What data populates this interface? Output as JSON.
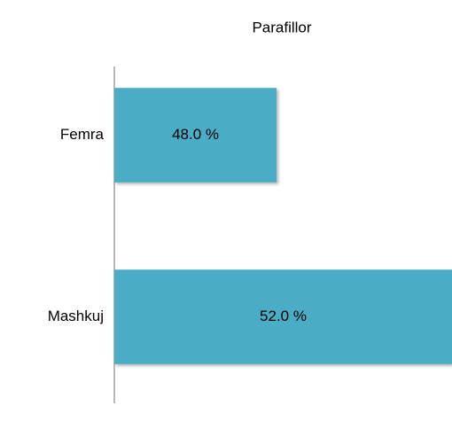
{
  "chart_data": {
    "type": "hbar",
    "title": "Parafillor",
    "categories": [
      "Femra",
      "Mashkuj"
    ],
    "values": [
      48.0,
      52.0
    ],
    "value_labels": [
      "48.0 %",
      "52.0 %"
    ],
    "color": "#4bacc6",
    "xlim": [
      44.3,
      52.0
    ]
  }
}
